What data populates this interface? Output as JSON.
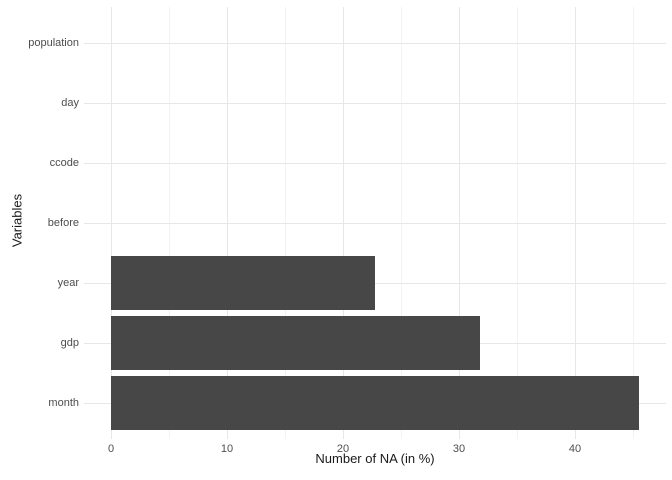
{
  "chart_data": {
    "type": "bar",
    "orientation": "horizontal",
    "title": "",
    "xlabel": "Number of NA (in %)",
    "ylabel": "Variables",
    "categories": [
      "population",
      "day",
      "ccode",
      "before",
      "year",
      "gdp",
      "month"
    ],
    "values": [
      0,
      0,
      0,
      0,
      22.8,
      31.8,
      45.5
    ],
    "x_major_ticks": [
      0,
      10,
      20,
      30,
      40
    ],
    "x_minor_ticks": [
      5,
      15,
      25,
      35,
      45
    ],
    "xlim": [
      0,
      47
    ],
    "grid": "on",
    "legend": "none"
  },
  "colors": {
    "bar_fill": "#474747",
    "grid_major": "#e7e7e7",
    "grid_minor": "#f2f2f2",
    "tick_text": "#4d4d4d",
    "axis_title_text": "#1a1a1a",
    "background": "#ffffff"
  }
}
